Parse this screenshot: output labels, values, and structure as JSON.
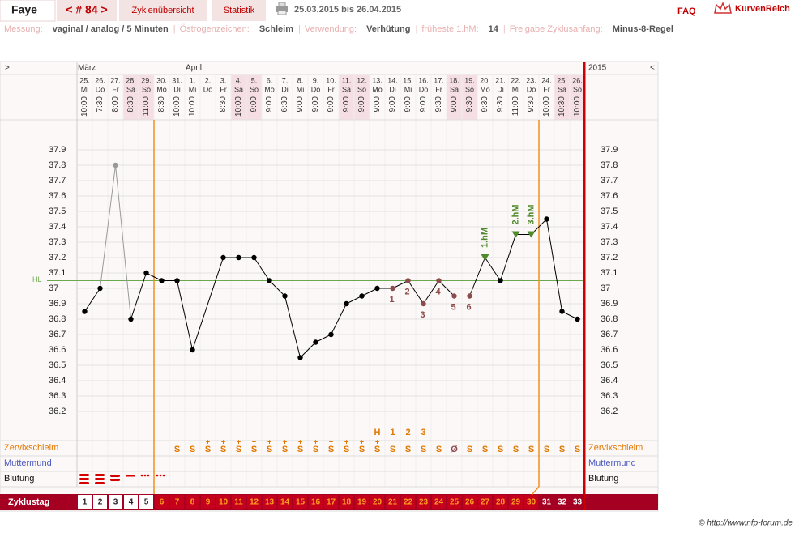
{
  "header": {
    "name": "Faye",
    "cycle_nav": "< # 84 >",
    "tabs": [
      "Zyklenübersicht",
      "Statistik"
    ],
    "date_range": "25.03.2015 bis 26.04.2015",
    "faq": "FAQ",
    "logo": "KurvenReich"
  },
  "settings": [
    {
      "label": "Messung:",
      "value": "vaginal / analog / 5 Minuten"
    },
    {
      "label": "Östrogenzeichen:",
      "value": "Schleim"
    },
    {
      "label": "Verwendung:",
      "value": "Verhütung"
    },
    {
      "label": "früheste 1.hM:",
      "value": 14
    },
    {
      "label": "Freigabe Zyklusanfang:",
      "value": "Minus-8-Regel"
    }
  ],
  "separator": "|",
  "footer": "© http://www.nfp-forum.de",
  "chart_data": {
    "type": "line",
    "nav_left": ">",
    "nav_right": "<",
    "year": "2015",
    "months": [
      "März",
      "April"
    ],
    "days": [
      "25.",
      "26.",
      "27.",
      "28.",
      "29.",
      "30.",
      "31.",
      "1.",
      "2.",
      "3.",
      "4.",
      "5.",
      "6.",
      "7.",
      "8.",
      "9.",
      "10.",
      "11.",
      "12.",
      "13.",
      "14.",
      "15.",
      "16.",
      "17.",
      "18.",
      "19.",
      "20.",
      "21.",
      "22.",
      "23.",
      "24.",
      "25.",
      "26."
    ],
    "weekdays": [
      "Mi",
      "Do",
      "Fr",
      "Sa",
      "So",
      "Mo",
      "Di",
      "Mi",
      "Do",
      "Fr",
      "Sa",
      "So",
      "Mo",
      "Di",
      "Mi",
      "Do",
      "Fr",
      "Sa",
      "So",
      "Mo",
      "Di",
      "Mi",
      "Do",
      "Fr",
      "Sa",
      "So",
      "Mo",
      "Di",
      "Mi",
      "Do",
      "Fr",
      "Sa",
      "So"
    ],
    "times": [
      "10:00",
      "7:30",
      "8:00",
      "8:30",
      "11:00",
      "8:30",
      "10:00",
      "10:00",
      null,
      "8:30",
      "10:00",
      "9:00",
      "9:00",
      "6:30",
      "9:00",
      "9:00",
      "9:00",
      "9:00",
      "9:00",
      "9:00",
      "9:00",
      "9:00",
      "9:00",
      "9:30",
      "9:00",
      "9:30",
      "9:30",
      "9:30",
      "11:00",
      "9:30",
      "10:00",
      "10:30",
      "10:00"
    ],
    "values": [
      36.85,
      37.0,
      37.8,
      36.8,
      37.1,
      37.05,
      37.05,
      36.6,
      null,
      37.2,
      37.2,
      37.2,
      37.05,
      36.95,
      36.55,
      36.65,
      36.7,
      36.9,
      36.95,
      37.0,
      37.0,
      37.05,
      36.9,
      37.05,
      36.95,
      36.95,
      37.2,
      37.05,
      37.35,
      37.35,
      37.45,
      36.85,
      36.8
    ],
    "color": "#000000",
    "excluded_days": [
      3
    ],
    "excluded_color": "#999999",
    "low_labels": [
      null,
      null,
      null,
      null,
      null,
      null,
      null,
      null,
      null,
      null,
      null,
      null,
      null,
      null,
      null,
      null,
      null,
      null,
      null,
      null,
      "1",
      "2",
      "3",
      "4",
      "5",
      "6",
      null,
      null,
      null,
      null,
      null,
      null,
      null
    ],
    "low_color": "#8b4c4c",
    "hm_labels": [
      null,
      null,
      null,
      null,
      null,
      null,
      null,
      null,
      null,
      null,
      null,
      null,
      null,
      null,
      null,
      null,
      null,
      null,
      null,
      null,
      null,
      null,
      null,
      null,
      null,
      null,
      "1.hM",
      null,
      "2.hM",
      "3.hM",
      null,
      null,
      null
    ],
    "hm_color": "#4f8a2b",
    "coverline": 37.05,
    "coverline_label": "HL",
    "coverline_color": "#6aa84f",
    "fertile_window": [
      6,
      30
    ],
    "ylim": [
      36.0,
      38.1
    ],
    "yticks": [
      37.9,
      37.8,
      37.7,
      37.6,
      37.5,
      37.4,
      37.3,
      37.2,
      37.1,
      37,
      36.9,
      36.8,
      36.7,
      36.6,
      36.5,
      36.4,
      36.3,
      36.2
    ],
    "grid": true,
    "peak_labels": [
      null,
      null,
      null,
      null,
      null,
      null,
      null,
      null,
      null,
      null,
      null,
      null,
      null,
      null,
      null,
      null,
      null,
      null,
      null,
      "H",
      "1",
      "2",
      "3",
      null,
      null,
      null,
      null,
      null,
      null,
      null,
      null,
      null,
      null
    ],
    "cervix": [
      null,
      null,
      null,
      null,
      null,
      null,
      "S",
      "S",
      "S",
      "S",
      "S",
      "S",
      "S",
      "S",
      "S",
      "S",
      "S",
      "S",
      "S",
      "S",
      "S",
      "S",
      "S",
      "S",
      "Ø",
      "S",
      "S",
      "S",
      "S",
      "S",
      "S",
      "S",
      "S"
    ],
    "cervix_plus": [
      null,
      null,
      null,
      null,
      null,
      null,
      null,
      null,
      "+",
      "+",
      "+",
      "+",
      "+",
      "+",
      "+",
      "+",
      "+",
      "+",
      "+",
      "+",
      null,
      null,
      null,
      null,
      null,
      null,
      null,
      null,
      null,
      null,
      null,
      null,
      null
    ],
    "rows": {
      "cervix": "Zervixschleim",
      "cervix_pos": "Muttermund",
      "bleeding": "Blutung",
      "cycle_day": "Zyklustag"
    },
    "cycle_days": [
      1,
      2,
      3,
      4,
      5,
      6,
      7,
      8,
      9,
      10,
      11,
      12,
      13,
      14,
      15,
      16,
      17,
      18,
      19,
      20,
      21,
      22,
      23,
      24,
      25,
      26,
      27,
      28,
      29,
      30,
      31,
      32,
      33
    ]
  }
}
